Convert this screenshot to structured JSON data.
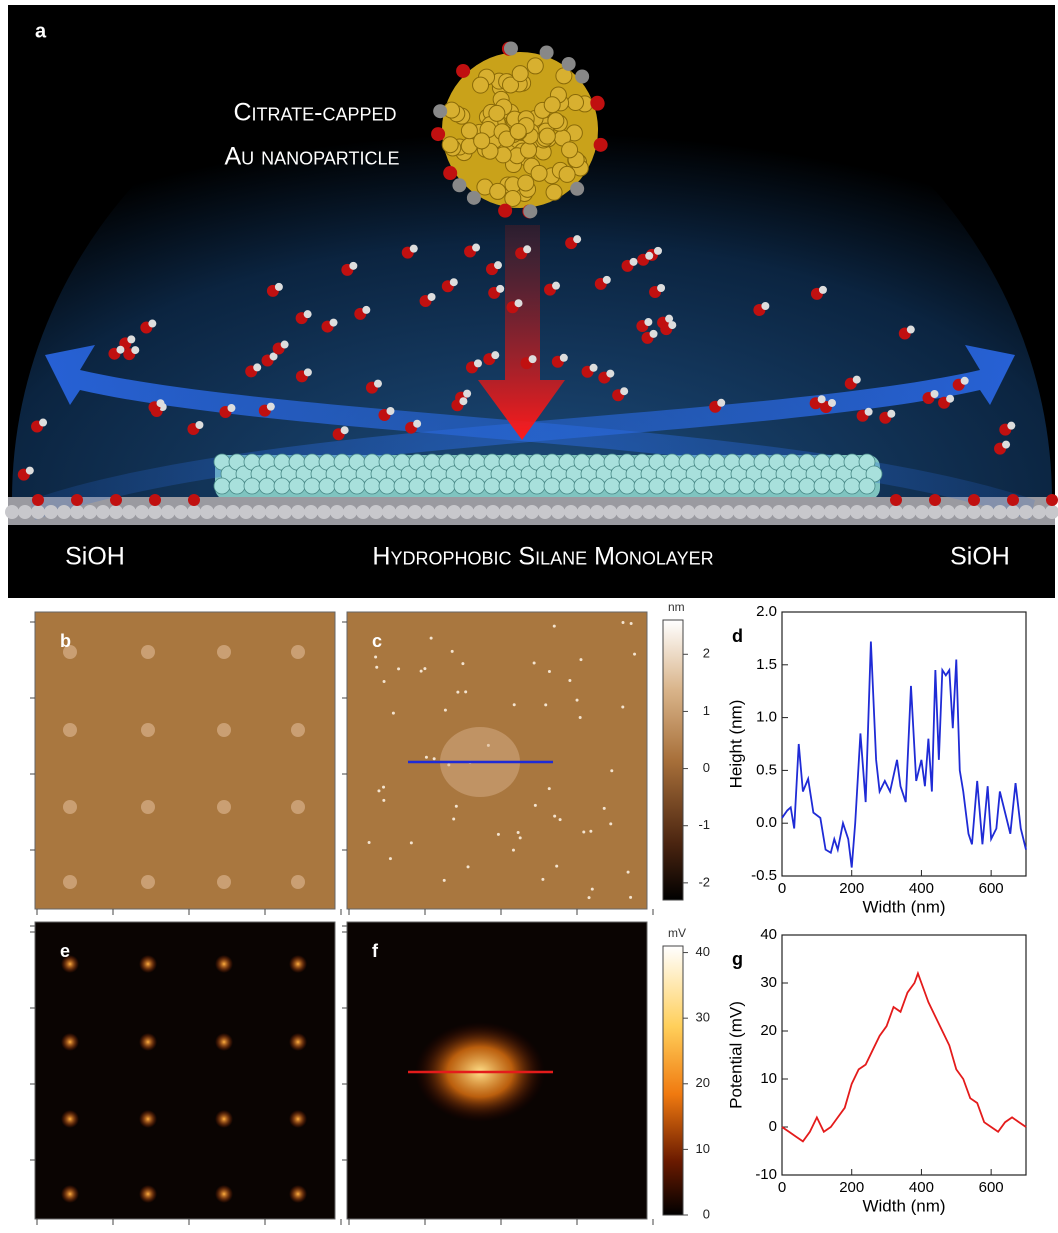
{
  "illustration": {
    "label": "a",
    "particle_label": [
      "Citrate-capped",
      "Au nanoparticle"
    ],
    "left_label": "SiOH",
    "center_label": "Hydrophobic Silane Monolayer",
    "right_label": "SiOH"
  },
  "images": [
    {
      "label": "b"
    },
    {
      "label": "c"
    },
    {
      "label": "e"
    },
    {
      "label": "f"
    }
  ],
  "colorbars": [
    {
      "unit": "nm",
      "lim": [
        -2.3,
        2.6
      ],
      "ticks": [
        2,
        1,
        0,
        -1,
        -2
      ]
    },
    {
      "unit": "mV",
      "lim": [
        0,
        41
      ],
      "ticks": [
        0,
        10,
        20,
        30,
        40
      ]
    }
  ],
  "chart_data": [
    {
      "type": "line",
      "panel_label": "d",
      "x_label": "Width (nm)",
      "y_label": "Height (nm)",
      "xlim": [
        0,
        700
      ],
      "ylim": [
        -0.5,
        2.0
      ],
      "xticks": [
        0,
        200,
        400,
        600
      ],
      "yticks": [
        -0.5,
        {
          "value": 0,
          "label": "0.0"
        },
        0.5,
        {
          "value": 1,
          "label": "1.0"
        },
        1.5,
        {
          "value": 2,
          "label": "2.0"
        }
      ],
      "x": [
        0,
        15,
        25,
        35,
        48,
        60,
        75,
        90,
        110,
        125,
        140,
        150,
        160,
        175,
        190,
        200,
        210,
        225,
        240,
        255,
        270,
        280,
        295,
        310,
        330,
        340,
        355,
        370,
        385,
        400,
        410,
        420,
        430,
        440,
        450,
        460,
        470,
        480,
        490,
        500,
        510,
        520,
        535,
        545,
        560,
        575,
        590,
        600,
        615,
        625,
        640,
        655,
        670,
        685,
        700
      ],
      "series": [
        {
          "color": "#1f2bd6",
          "values": [
            0.05,
            0.12,
            0.15,
            -0.05,
            0.75,
            0.3,
            0.42,
            0.1,
            0.05,
            -0.25,
            -0.28,
            -0.15,
            -0.25,
            0.0,
            -0.15,
            -0.42,
            0.0,
            0.85,
            0.2,
            1.72,
            0.6,
            0.3,
            0.4,
            0.3,
            0.6,
            0.35,
            0.2,
            1.3,
            0.4,
            0.6,
            0.35,
            0.8,
            0.3,
            1.45,
            0.6,
            1.45,
            1.4,
            1.45,
            0.9,
            1.55,
            0.5,
            0.3,
            -0.1,
            -0.2,
            0.4,
            -0.2,
            0.35,
            -0.15,
            -0.05,
            0.3,
            0.1,
            -0.1,
            0.38,
            -0.05,
            -0.25
          ]
        }
      ]
    },
    {
      "type": "line",
      "panel_label": "g",
      "x_label": "Width (nm)",
      "y_label": "Potential (mV)",
      "xlim": [
        0,
        700
      ],
      "ylim": [
        -10,
        40
      ],
      "xticks": [
        0,
        200,
        400,
        600
      ],
      "yticks": [
        -10,
        0,
        10,
        20,
        30,
        40
      ],
      "x": [
        0,
        20,
        40,
        60,
        80,
        100,
        120,
        140,
        160,
        180,
        200,
        220,
        240,
        260,
        280,
        300,
        320,
        340,
        360,
        380,
        390,
        400,
        420,
        440,
        460,
        480,
        500,
        520,
        540,
        560,
        580,
        600,
        620,
        640,
        660,
        680,
        700
      ],
      "series": [
        {
          "color": "#e41b1b",
          "values": [
            0,
            -1,
            -2,
            -3,
            -1,
            2,
            -1,
            0,
            2,
            4,
            9,
            12,
            13,
            16,
            19,
            21,
            25,
            24,
            28,
            30,
            32,
            30,
            26,
            23,
            20,
            17,
            12,
            10,
            6,
            5,
            1,
            0,
            -1,
            1,
            2,
            1,
            0
          ]
        }
      ]
    }
  ]
}
